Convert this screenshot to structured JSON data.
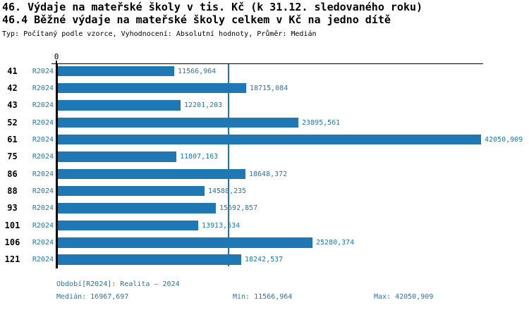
{
  "header": {
    "title1": "46. Výdaje na mateřské školy v tis. Kč (k 31.12. sledovaného roku)",
    "title2": "46.4 Běžné výdaje na mateřské školy celkem v Kč na jedno dítě",
    "meta": "Typ: Počítaný podle vzorce, Vyhodnocení: Absolutní hodnoty, Průměr: Medián"
  },
  "chart_data": {
    "type": "bar",
    "orientation": "horizontal",
    "title": "46.4 Běžné výdaje na mateřské školy celkem v Kč na jedno dítě",
    "categories": [
      "41",
      "42",
      "43",
      "52",
      "61",
      "75",
      "86",
      "88",
      "93",
      "101",
      "106",
      "121"
    ],
    "series": [
      {
        "name": "R2024",
        "values": [
          11566.964,
          18715.084,
          12201.203,
          23895.561,
          42050.909,
          11807.163,
          18648.372,
          14588.235,
          15692.857,
          13913.534,
          25280.374,
          18242.537
        ]
      }
    ],
    "value_labels": [
      "11566,964",
      "18715,084",
      "12201,203",
      "23895,561",
      "42050,909",
      "11807,163",
      "18648,372",
      "14588,235",
      "15692,857",
      "13913,534",
      "25280,374",
      "18242,537"
    ],
    "xlim": [
      0,
      42050.909
    ],
    "x_axis_zero_label": "0",
    "median_value": 16967.697,
    "bar_color": "#1f77b4",
    "median_line_color": "#1f77b4",
    "text_accent_color": "#1f77b4",
    "axis_color": "#000000",
    "grid": false,
    "legend_position": "none"
  },
  "footer": {
    "period": "Období[R2024]: Realita – 2024",
    "median": "Medián: 16967,697",
    "min": "Min: 11566,964",
    "max": "Max: 42050,909"
  }
}
